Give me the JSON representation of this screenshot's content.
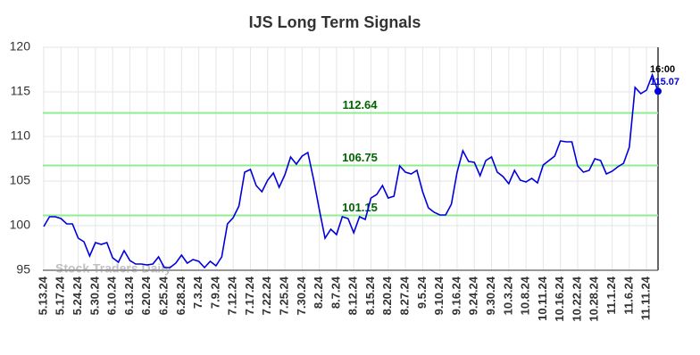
{
  "chart_data": {
    "type": "line",
    "title": "IJS Long Term Signals",
    "watermark": "Stock Traders Daily",
    "categories": [
      "5.13.24",
      null,
      null,
      "5.17.24",
      null,
      null,
      "5.24.24",
      null,
      null,
      "5.30.24",
      null,
      null,
      "6.10.24",
      null,
      null,
      "6.13.24",
      null,
      null,
      "6.20.24",
      null,
      null,
      "6.25.24",
      null,
      null,
      "6.28.24",
      null,
      null,
      "7.3.24",
      null,
      null,
      "7.9.24",
      null,
      null,
      "7.12.24",
      null,
      null,
      "7.17.24",
      null,
      null,
      "7.22.24",
      null,
      null,
      "7.25.24",
      null,
      null,
      "7.30.24",
      null,
      null,
      "8.2.24",
      null,
      null,
      "8.7.24",
      null,
      null,
      "8.12.24",
      null,
      null,
      "8.15.24",
      null,
      null,
      "8.20.24",
      null,
      null,
      "8.27.24",
      null,
      null,
      "9.5.24",
      null,
      null,
      "9.10.24",
      null,
      null,
      "9.16.24",
      null,
      null,
      "9.24.24",
      null,
      null,
      "9.30.24",
      null,
      null,
      "10.3.24",
      null,
      null,
      "10.8.24",
      null,
      null,
      "10.11.24",
      null,
      null,
      "10.16.24",
      null,
      null,
      "10.22.24",
      null,
      null,
      "10.28.24",
      null,
      null,
      "11.1.24",
      null,
      null,
      "11.6.24",
      null,
      null,
      "11.11.24",
      null,
      null
    ],
    "series": [
      {
        "color": "#0000dd",
        "values": [
          99.9,
          101,
          101,
          100.8,
          100.2,
          100.2,
          98.6,
          98.2,
          96.6,
          98.1,
          97.9,
          98.1,
          96.4,
          95.9,
          97.2,
          96.1,
          95.7,
          95.7,
          95.6,
          95.7,
          96.5,
          95.3,
          95.3,
          95.8,
          96.7,
          95.8,
          96.2,
          96.0,
          95.3,
          96.0,
          95.5,
          96.5,
          100.2,
          100.9,
          102.2,
          106.0,
          106.3,
          104.5,
          103.8,
          105.1,
          105.9,
          104.3,
          105.7,
          107.7,
          106.9,
          107.8,
          108.2,
          105.2,
          101.8,
          98.6,
          99.6,
          99.0,
          101.0,
          100.8,
          99.2,
          101.0,
          100.7,
          103.1,
          103.5,
          104.5,
          103.1,
          103.3,
          106.7,
          106.0,
          105.8,
          106.2,
          103.8,
          102.0,
          101.5,
          101.2,
          101.2,
          102.4,
          106.0,
          108.4,
          107.2,
          107.1,
          105.6,
          107.3,
          107.7,
          106.0,
          105.5,
          104.7,
          106.2,
          105.1,
          104.9,
          105.3,
          104.8,
          106.8,
          107.3,
          107.8,
          109.5,
          109.4,
          109.4,
          106.7,
          106.0,
          106.2,
          107.5,
          107.3,
          105.8,
          106.1,
          106.6,
          107.0,
          108.8,
          115.5,
          114.8,
          115.2,
          116.9,
          115.07
        ]
      }
    ],
    "last_point_time": "16:00",
    "hlines": [
      {
        "value": 112.64,
        "color": "#90ee90",
        "label_color": "#006400"
      },
      {
        "value": 106.75,
        "color": "#90ee90",
        "label_color": "#006400"
      },
      {
        "value": 101.15,
        "color": "#90ee90",
        "label_color": "#006400"
      }
    ],
    "ylim": [
      95,
      120
    ],
    "yticks": [
      95,
      100,
      105,
      110,
      115,
      120
    ],
    "grid": true
  }
}
